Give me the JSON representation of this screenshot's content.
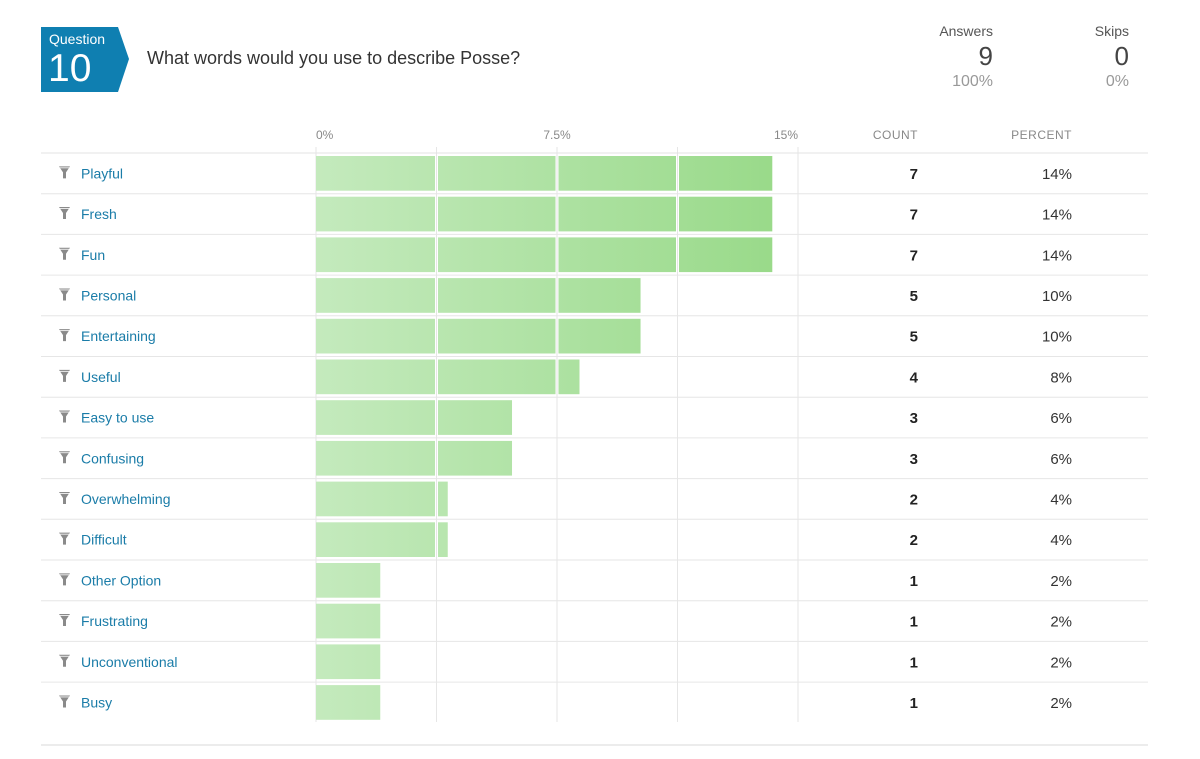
{
  "question": {
    "word": "Question",
    "number": "10",
    "title": "What words would you use to describe Posse?"
  },
  "stats": {
    "answers": {
      "label": "Answers",
      "value": "9",
      "percent": "100%"
    },
    "skips": {
      "label": "Skips",
      "value": "0",
      "percent": "0%"
    }
  },
  "colors": {
    "badge": "#0f7fb1",
    "bar_light": "#c4eabd",
    "bar_dark": "#97d987",
    "label": "#1a7ca8",
    "filter_icon": "#8a8a8a"
  },
  "chart_data": {
    "type": "bar",
    "orientation": "horizontal",
    "xlim": [
      0,
      15
    ],
    "ticks": [
      "0%",
      "7.5%",
      "15%"
    ],
    "column_headers": {
      "count": "COUNT",
      "percent": "PERCENT"
    },
    "categories": [
      "Playful",
      "Fresh",
      "Fun",
      "Personal",
      "Entertaining",
      "Useful",
      "Easy to use",
      "Confusing",
      "Overwhelming",
      "Difficult",
      "Other Option",
      "Frustrating",
      "Unconventional",
      "Busy"
    ],
    "counts": [
      7,
      7,
      7,
      5,
      5,
      4,
      3,
      3,
      2,
      2,
      1,
      1,
      1,
      1
    ],
    "percent_labels": [
      "14%",
      "14%",
      "14%",
      "10%",
      "10%",
      "8%",
      "6%",
      "6%",
      "4%",
      "4%",
      "2%",
      "2%",
      "2%",
      "2%"
    ],
    "values": [
      14.2,
      14.2,
      14.2,
      10.1,
      10.1,
      8.2,
      6.1,
      6.1,
      4.1,
      4.1,
      2.0,
      2.0,
      2.0,
      2.0
    ]
  }
}
